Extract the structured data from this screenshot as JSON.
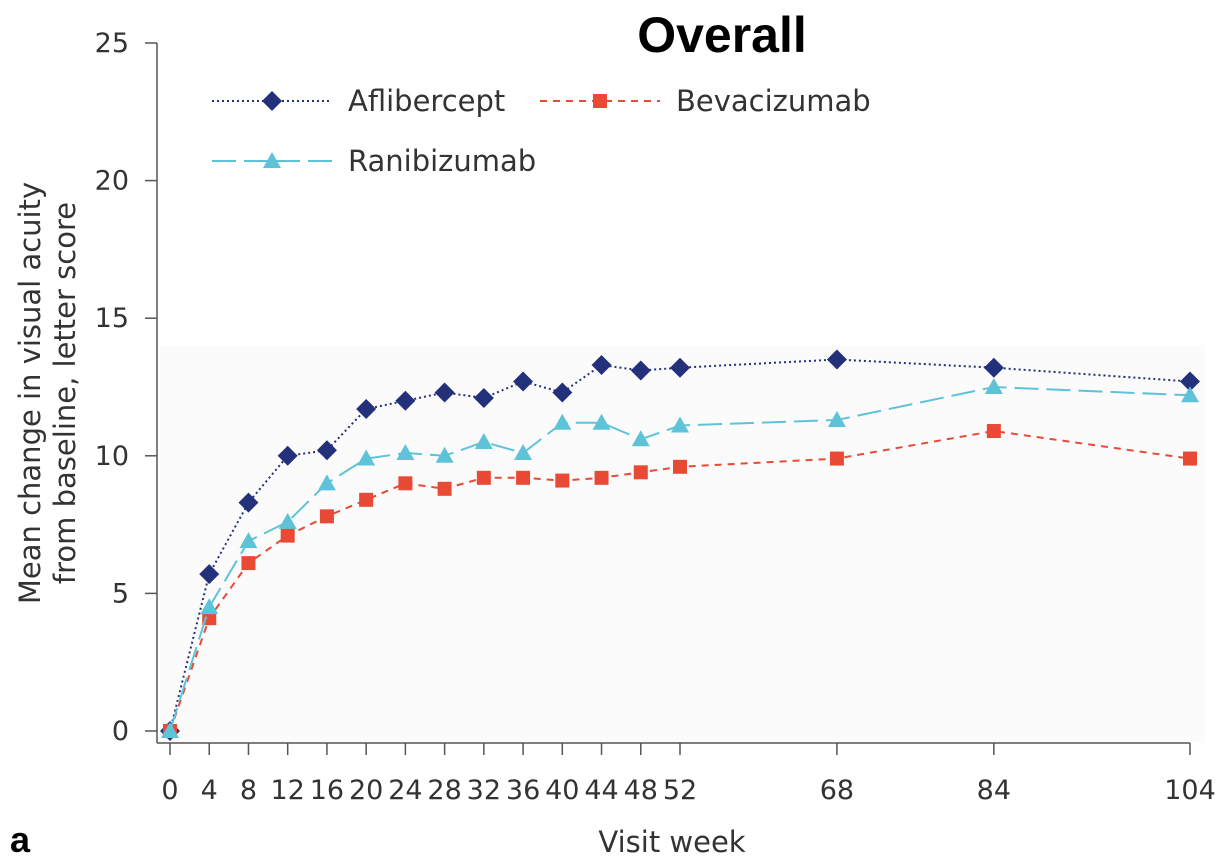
{
  "panel_label": "a",
  "chart_data": {
    "type": "line",
    "title": "Overall",
    "xlabel": "Visit week",
    "ylabel_lines": [
      "Mean change in visual acuity",
      "from baseline, letter score"
    ],
    "x": [
      0,
      4,
      8,
      12,
      16,
      20,
      24,
      28,
      32,
      36,
      40,
      44,
      48,
      52,
      68,
      84,
      104
    ],
    "x_tick_labels": [
      "0",
      "4",
      "8",
      "12",
      "16",
      "20",
      "24",
      "28",
      "32",
      "36",
      "40",
      "44",
      "48",
      "52",
      "68",
      "84",
      "104"
    ],
    "y_ticks": [
      0,
      5,
      10,
      15,
      20,
      25
    ],
    "ylim": [
      0,
      25
    ],
    "series": [
      {
        "name": "Aflibercept",
        "color": "#23307a",
        "marker": "diamond",
        "line_style": "dotted",
        "values": [
          0,
          5.7,
          8.3,
          10.0,
          10.2,
          11.7,
          12.0,
          12.3,
          12.1,
          12.7,
          12.3,
          13.3,
          13.1,
          13.2,
          13.5,
          13.2,
          12.7
        ]
      },
      {
        "name": "Bevacizumab",
        "color": "#e84a35",
        "marker": "square",
        "line_style": "dashed",
        "values": [
          0,
          4.1,
          6.1,
          7.1,
          7.8,
          8.4,
          9.0,
          8.8,
          9.2,
          9.2,
          9.1,
          9.2,
          9.4,
          9.6,
          9.9,
          10.9,
          9.9
        ]
      },
      {
        "name": "Ranibizumab",
        "color": "#5ec3d8",
        "marker": "triangle",
        "line_style": "long-dash",
        "values": [
          0,
          4.5,
          6.9,
          7.6,
          9.0,
          9.9,
          10.1,
          10.0,
          10.5,
          10.1,
          11.2,
          11.2,
          10.6,
          11.1,
          11.3,
          12.5,
          12.2
        ]
      }
    ],
    "grid": false,
    "legend_position": "top-left"
  }
}
